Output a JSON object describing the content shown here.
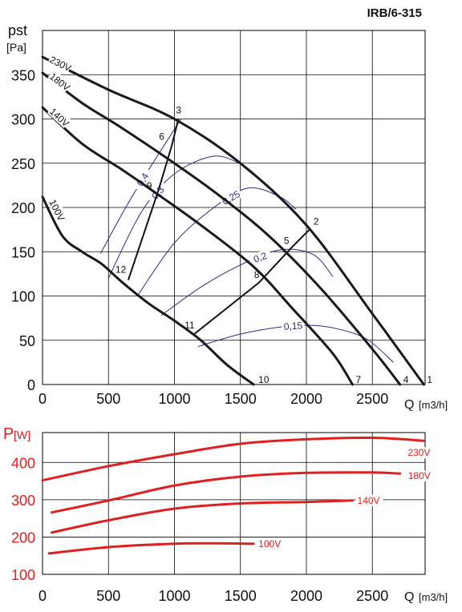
{
  "chart_data": [
    {
      "type": "line",
      "title": "IRB/6-315",
      "ylabel": "pst",
      "yunit": "[Pa]",
      "xlabel": "Q",
      "xunit": "[m3/h]",
      "xlim": [
        0,
        2900
      ],
      "ylim": [
        0,
        400
      ],
      "xticks": [
        0,
        500,
        1000,
        1500,
        2000,
        2500
      ],
      "yticks": [
        0,
        50,
        100,
        150,
        200,
        250,
        300,
        350
      ],
      "grid": true,
      "colors": {
        "curve": "#1a1a1a",
        "efficiency": "#2b2b86",
        "grid": "#000000"
      },
      "series": [
        {
          "name": "230V",
          "x": [
            0,
            500,
            1000,
            1500,
            2000,
            2500,
            2890
          ],
          "y": [
            370,
            333,
            300,
            250,
            180,
            80,
            0
          ]
        },
        {
          "name": "180V",
          "x": [
            0,
            300,
            600,
            950,
            1300,
            1700,
            2100,
            2500,
            2710
          ],
          "y": [
            352,
            318,
            290,
            255,
            218,
            170,
            110,
            40,
            0
          ]
        },
        {
          "name": "140V",
          "x": [
            0,
            300,
            600,
            900,
            1200,
            1600,
            1900,
            2200,
            2350
          ],
          "y": [
            313,
            272,
            243,
            212,
            180,
            133,
            85,
            35,
            0
          ]
        },
        {
          "name": "100V",
          "x": [
            0,
            150,
            300,
            450,
            600,
            800,
            1000,
            1200,
            1400,
            1600
          ],
          "y": [
            212,
            168,
            150,
            136,
            116,
            92,
            72,
            50,
            22,
            0
          ]
        }
      ],
      "efficiency_curves": [
        {
          "label": "0,4",
          "x": [
            440,
            650,
            870,
            1050
          ],
          "y": [
            148,
            205,
            258,
            300
          ]
        },
        {
          "label": "0,3",
          "x": [
            500,
            750,
            1000,
            1300,
            1520
          ],
          "y": [
            120,
            195,
            238,
            258,
            248
          ]
        },
        {
          "label": "0,25",
          "x": [
            720,
            1000,
            1300,
            1560,
            1800,
            1920
          ],
          "y": [
            100,
            160,
            200,
            222,
            212,
            198
          ]
        },
        {
          "label": "0,2",
          "x": [
            900,
            1200,
            1500,
            1800,
            2050,
            2200
          ],
          "y": [
            78,
            110,
            135,
            152,
            147,
            122
          ]
        },
        {
          "label": "0,15",
          "x": [
            1180,
            1500,
            1800,
            2000,
            2200,
            2450,
            2660
          ],
          "y": [
            43,
            57,
            65,
            67,
            64,
            52,
            25
          ]
        }
      ],
      "system_lines": [
        {
          "points": [
            "3",
            "6",
            "9",
            "12"
          ],
          "x": [
            1030,
            980,
            880,
            650
          ],
          "y": [
            300,
            270,
            220,
            118
          ]
        },
        {
          "points": [
            "2",
            "5",
            "8",
            "11"
          ],
          "x": [
            2030,
            1890,
            1640,
            1150
          ],
          "y": [
            176,
            155,
            115,
            57
          ]
        }
      ],
      "point_labels": [
        {
          "label": "1",
          "x": 2890,
          "y": 0
        },
        {
          "label": "2",
          "x": 2030,
          "y": 176
        },
        {
          "label": "3",
          "x": 1030,
          "y": 300
        },
        {
          "label": "4",
          "x": 2710,
          "y": 0
        },
        {
          "label": "5",
          "x": 1890,
          "y": 155
        },
        {
          "label": "6",
          "x": 980,
          "y": 270
        },
        {
          "label": "7",
          "x": 2350,
          "y": 0
        },
        {
          "label": "8",
          "x": 1640,
          "y": 115
        },
        {
          "label": "9",
          "x": 880,
          "y": 220
        },
        {
          "label": "10",
          "x": 1600,
          "y": 0
        },
        {
          "label": "11",
          "x": 1150,
          "y": 57
        },
        {
          "label": "12",
          "x": 650,
          "y": 118
        }
      ]
    },
    {
      "type": "line",
      "ylabel": "P",
      "yunit": "[W]",
      "xlabel": "Q",
      "xunit": "[m3/h]",
      "xlim": [
        0,
        2900
      ],
      "ylim": [
        100,
        480
      ],
      "xticks": [
        0,
        500,
        1000,
        1500,
        2000,
        2500
      ],
      "yticks": [
        100,
        200,
        300,
        400
      ],
      "grid": true,
      "colors": {
        "curve": "#e02020",
        "label": "#e02020"
      },
      "series": [
        {
          "name": "230V",
          "x": [
            0,
            500,
            1000,
            1500,
            2000,
            2500,
            2890
          ],
          "y": [
            352,
            390,
            422,
            450,
            462,
            466,
            458
          ]
        },
        {
          "name": "180V",
          "x": [
            70,
            500,
            1000,
            1500,
            2000,
            2500,
            2710
          ],
          "y": [
            266,
            298,
            338,
            362,
            372,
            373,
            370
          ]
        },
        {
          "name": "140V",
          "x": [
            70,
            500,
            1000,
            1500,
            2000,
            2350
          ],
          "y": [
            212,
            245,
            276,
            290,
            294,
            298
          ]
        },
        {
          "name": "100V",
          "x": [
            50,
            500,
            1000,
            1300,
            1600
          ],
          "y": [
            156,
            173,
            182,
            183,
            182
          ]
        }
      ]
    }
  ]
}
